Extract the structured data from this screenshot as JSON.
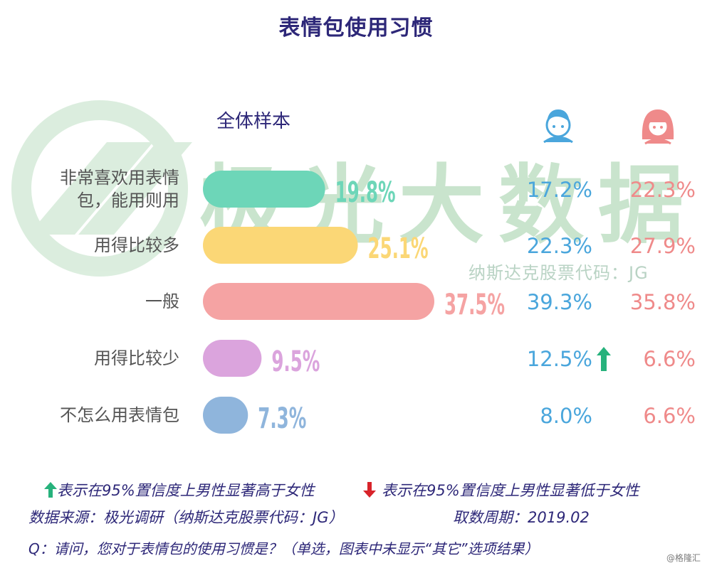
{
  "chart_data": {
    "type": "bar",
    "title": "表情包使用习惯",
    "sample_label": "全体样本",
    "categories": [
      "非常喜欢用表情包，能用则用",
      "用得比较多",
      "一般",
      "用得比较少",
      "不怎么用表情包"
    ],
    "category_lines": [
      [
        "非常喜欢用表情",
        "包，能用则用"
      ],
      [
        "用得比较多"
      ],
      [
        "一般"
      ],
      [
        "用得比较少"
      ],
      [
        "不怎么用表情包"
      ]
    ],
    "series": [
      {
        "name": "全体样本",
        "values": [
          19.8,
          25.1,
          37.5,
          9.5,
          7.3
        ],
        "labels": [
          "19.8%",
          "25.1%",
          "37.5%",
          "9.5%",
          "7.3%"
        ]
      },
      {
        "icon": "male-avatar-icon",
        "values": [
          17.2,
          22.3,
          39.3,
          12.5,
          8.0
        ],
        "labels": [
          "17.2%",
          "22.3%",
          "39.3%",
          "12.5%",
          "8.0%"
        ]
      },
      {
        "icon": "female-avatar-icon",
        "values": [
          22.3,
          27.9,
          35.8,
          6.6,
          6.6
        ],
        "labels": [
          "22.3%",
          "27.9%",
          "35.8%",
          "6.6%",
          "6.6%"
        ]
      }
    ],
    "significance_up_index": 3,
    "colors": {
      "bars": [
        "#6dd6b8",
        "#fbd776",
        "#f5a3a3",
        "#dba4dd",
        "#8fb5dc"
      ],
      "male": "#4aa6dc",
      "female": "#ef8a8a",
      "up_arrow": "#27b27c",
      "down_arrow": "#d8232a",
      "title": "#2d2778"
    }
  },
  "watermark": {
    "brand": "极光大数据",
    "code": "纳斯达克股票代码：JG"
  },
  "notes": {
    "up": "表示在95%置信度上男性显著高于女性",
    "down": "表示在95%置信度上男性显著低于女性",
    "source": "数据来源：极光调研（纳斯达克股票代码：JG）",
    "period": "取数周期：2019.02",
    "question": "Q：请问，您对于表情包的使用习惯是？（单选，图表中未显示“其它”选项结果）"
  },
  "corner_mark": "@格隆汇"
}
